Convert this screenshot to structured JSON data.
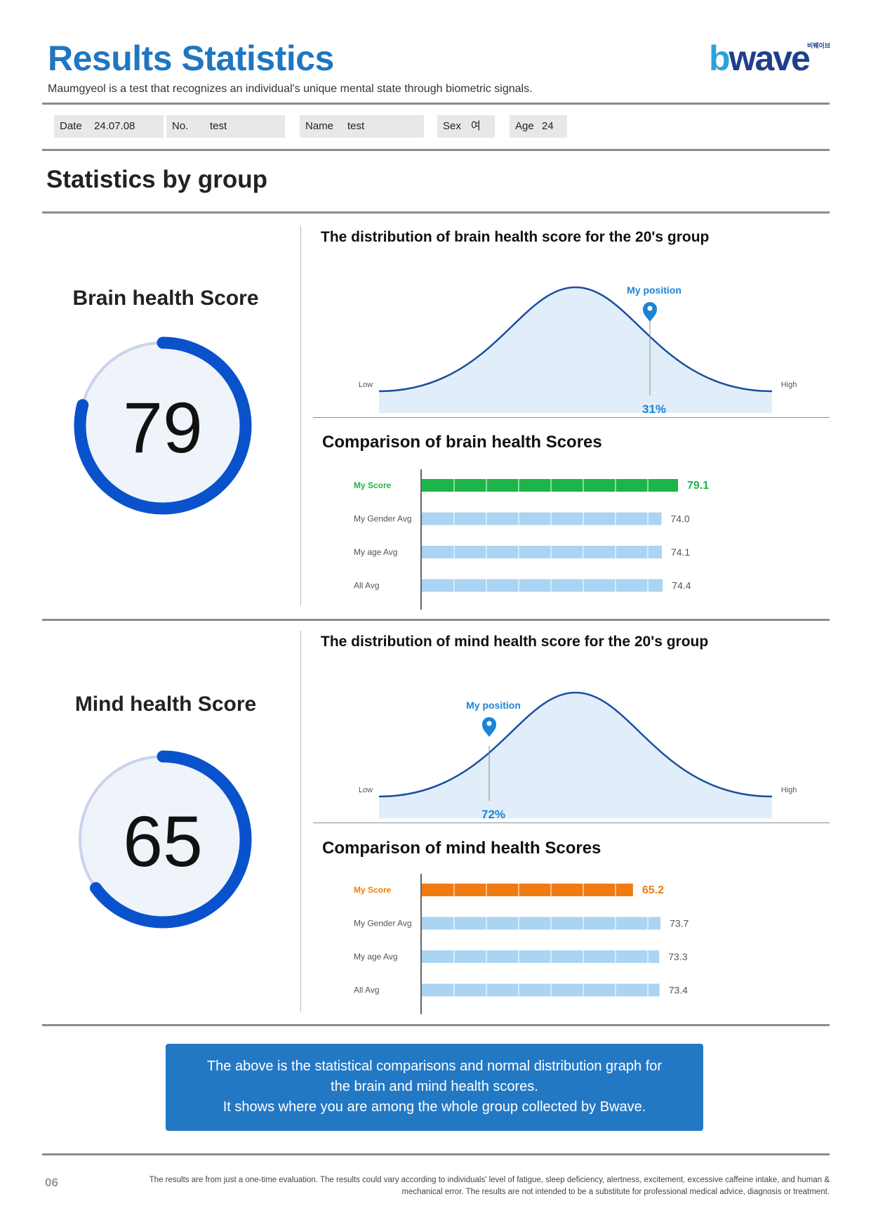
{
  "header": {
    "title": "Results Statistics",
    "subtitle": "Maumgyeol is a test that recognizes an individual's unique mental state through biometric signals.",
    "logo_text": "bwave",
    "logo_small": "비웨이브"
  },
  "info": {
    "date_label": "Date",
    "date_value": "24.07.08",
    "no_label": "No.",
    "no_value": "test",
    "name_label": "Name",
    "name_value": "test",
    "sex_label": "Sex",
    "sex_value": "여",
    "age_label": "Age",
    "age_value": "24"
  },
  "section_title": "Statistics by group",
  "brain": {
    "score_title": "Brain health Score",
    "score": "79",
    "score_value": 79,
    "dist_title": "The distribution of brain health score for the 20's group",
    "my_position_label": "My position",
    "percentile": "31%",
    "low_label": "Low",
    "high_label": "High",
    "cmp_title": "Comparison of brain health Scores",
    "bars": [
      {
        "label": "My Score",
        "value": 79.1,
        "text": "79.1"
      },
      {
        "label": "My Gender Avg",
        "value": 74.0,
        "text": "74.0"
      },
      {
        "label": "My age Avg",
        "value": 74.1,
        "text": "74.1"
      },
      {
        "label": "All Avg",
        "value": 74.4,
        "text": "74.4"
      }
    ],
    "my_color": "#1db54a"
  },
  "mind": {
    "score_title": "Mind health Score",
    "score": "65",
    "score_value": 65,
    "dist_title": "The distribution of mind health score for the 20's group",
    "my_position_label": "My position",
    "percentile": "72%",
    "low_label": "Low",
    "high_label": "High",
    "cmp_title": "Comparison of mind health Scores",
    "bars": [
      {
        "label": "My Score",
        "value": 65.2,
        "text": "65.2"
      },
      {
        "label": "My Gender Avg",
        "value": 73.7,
        "text": "73.7"
      },
      {
        "label": "My age Avg",
        "value": 73.3,
        "text": "73.3"
      },
      {
        "label": "All Avg",
        "value": 73.4,
        "text": "73.4"
      }
    ],
    "my_color": "#f07b10"
  },
  "colors": {
    "accent": "#1f76c2",
    "ring": "#0a52cc",
    "avg_bar": "#abd4f2",
    "curve": "#1a4fa0"
  },
  "note": {
    "line1": "The above is the statistical comparisons and normal distribution graph for",
    "line2": "the brain and mind health scores.",
    "line3": "It shows where you are among the whole group collected by Bwave."
  },
  "footer": {
    "page_number": "06",
    "disclaimer_line1": "The results are from just a one-time evaluation. The results could vary according to individuals' level of fatigue, sleep deficiency, alertness, excitement, excessive caffeine intake, and human &",
    "disclaimer_line2": "mechanical error. The results are not intended to be a substitute for professional medical advice, diagnosis or treatment."
  }
}
